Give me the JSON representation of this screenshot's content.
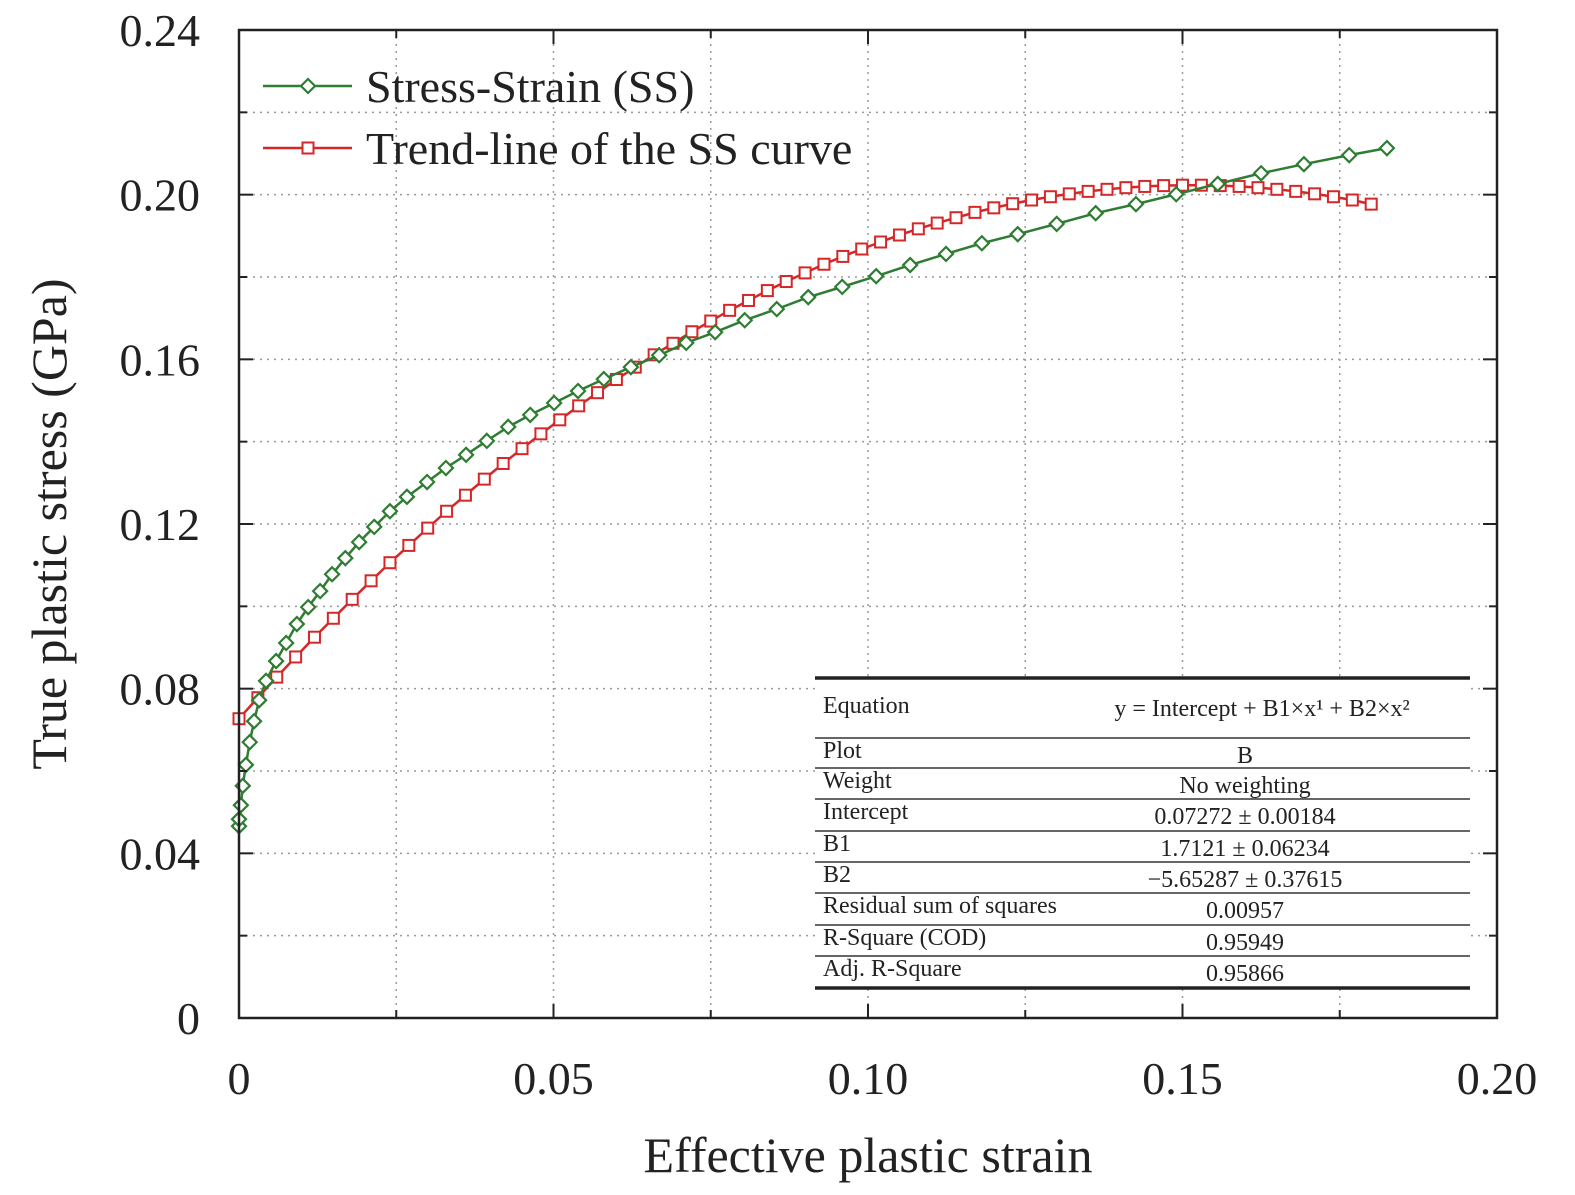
{
  "chart_data": {
    "type": "line",
    "xlabel": "Effective plastic strain",
    "ylabel": "True plastic stress (GPa)",
    "xlim": [
      0,
      0.2
    ],
    "ylim": [
      0,
      0.24
    ],
    "xticks": [
      "0",
      "0.05",
      "0.10",
      "0.15",
      "0.20"
    ],
    "yticks": [
      "0",
      "0.04",
      "0.08",
      "0.12",
      "0.16",
      "0.20",
      "0.24"
    ],
    "grid": true,
    "legend_position": "top-left",
    "series": [
      {
        "name": "Stress-Strain (SS)",
        "color": "#2e7d32",
        "marker": "diamond",
        "x": [
          0,
          0,
          0.0003,
          0.0006,
          0.0011,
          0.0017,
          0.0024,
          0.0032,
          0.0043,
          0.0059,
          0.0075,
          0.0092,
          0.011,
          0.0129,
          0.0148,
          0.0169,
          0.0191,
          0.0215,
          0.024,
          0.0267,
          0.0299,
          0.0329,
          0.0361,
          0.0394,
          0.0428,
          0.0463,
          0.0501,
          0.0539,
          0.058,
          0.0623,
          0.0668,
          0.0711,
          0.0757,
          0.0804,
          0.0855,
          0.0905,
          0.0959,
          0.1013,
          0.1067,
          0.1124,
          0.1181,
          0.1238,
          0.13,
          0.1362,
          0.1426,
          0.149,
          0.1556,
          0.1625,
          0.1693,
          0.1765,
          0.1825
        ],
        "y": [
          0.0466,
          0.0483,
          0.0517,
          0.0564,
          0.0615,
          0.067,
          0.0721,
          0.0772,
          0.0819,
          0.0867,
          0.0911,
          0.0957,
          0.0998,
          0.1037,
          0.1078,
          0.1117,
          0.1156,
          0.1193,
          0.1231,
          0.1266,
          0.1302,
          0.1336,
          0.1368,
          0.1402,
          0.1436,
          0.1465,
          0.1494,
          0.1523,
          0.1552,
          0.1581,
          0.161,
          0.164,
          0.1666,
          0.1695,
          0.1722,
          0.1751,
          0.1776,
          0.1802,
          0.1829,
          0.1856,
          0.1882,
          0.1904,
          0.1929,
          0.1955,
          0.1977,
          0.2001,
          0.2026,
          0.2052,
          0.2074,
          0.2096,
          0.2113
        ]
      },
      {
        "name": "Trend-line of the SS curve",
        "color": "#d62728",
        "marker": "square",
        "x": [
          0,
          0.003,
          0.006,
          0.009,
          0.012,
          0.015,
          0.018,
          0.021,
          0.024,
          0.027,
          0.03,
          0.033,
          0.036,
          0.039,
          0.042,
          0.045,
          0.048,
          0.051,
          0.054,
          0.057,
          0.06,
          0.063,
          0.066,
          0.069,
          0.072,
          0.075,
          0.078,
          0.081,
          0.084,
          0.087,
          0.09,
          0.093,
          0.096,
          0.099,
          0.102,
          0.105,
          0.108,
          0.111,
          0.114,
          0.117,
          0.12,
          0.123,
          0.126,
          0.129,
          0.132,
          0.135,
          0.138,
          0.141,
          0.144,
          0.147,
          0.15,
          0.153,
          0.156,
          0.159,
          0.162,
          0.165,
          0.168,
          0.171,
          0.174,
          0.177,
          0.18
        ],
        "y": [
          0.0727,
          0.0778,
          0.0828,
          0.0877,
          0.0925,
          0.0971,
          0.1017,
          0.1062,
          0.1106,
          0.1148,
          0.119,
          0.1231,
          0.127,
          0.1309,
          0.1347,
          0.1383,
          0.1419,
          0.1453,
          0.1487,
          0.1519,
          0.1551,
          0.1581,
          0.1611,
          0.1639,
          0.1667,
          0.1693,
          0.1719,
          0.1743,
          0.1767,
          0.1789,
          0.181,
          0.1831,
          0.185,
          0.1868,
          0.1885,
          0.1902,
          0.1917,
          0.1931,
          0.1944,
          0.1957,
          0.1968,
          0.1978,
          0.1987,
          0.1995,
          0.2002,
          0.2008,
          0.2013,
          0.2017,
          0.202,
          0.2022,
          0.2023,
          0.2023,
          0.2022,
          0.202,
          0.2017,
          0.2013,
          0.2008,
          0.2002,
          0.1995,
          0.1987,
          0.1977
        ]
      }
    ],
    "fit_table": {
      "rows": [
        {
          "label": "Equation",
          "value": "y = Intercept + B1×x¹ + B2×x²"
        },
        {
          "label": "Plot",
          "value": "B"
        },
        {
          "label": "Weight",
          "value": "No weighting"
        },
        {
          "label": "Intercept",
          "value": "0.07272 ± 0.00184"
        },
        {
          "label": "B1",
          "value": "1.7121 ± 0.06234"
        },
        {
          "label": "B2",
          "value": "−5.65287 ± 0.37615"
        },
        {
          "label": "Residual sum of squares",
          "value": "0.00957"
        },
        {
          "label": "R-Square (COD)",
          "value": "0.95949"
        },
        {
          "label": "Adj. R-Square",
          "value": "0.95866"
        }
      ]
    }
  }
}
